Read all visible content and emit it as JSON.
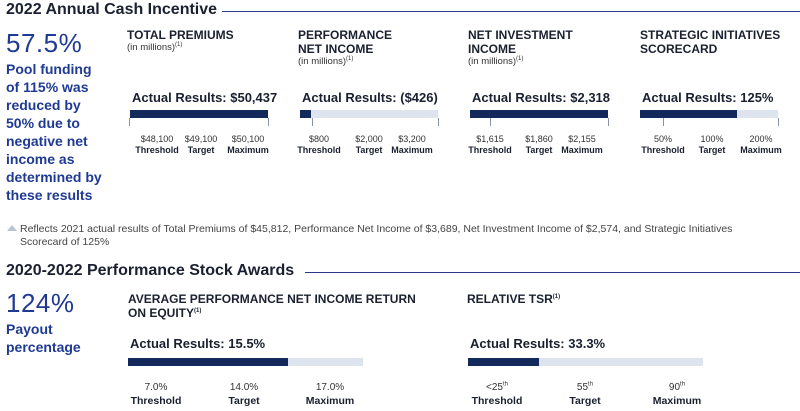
{
  "cash": {
    "title": "2022 Annual Cash Incentive",
    "pool_pct": "57.5%",
    "pool_text": [
      "Pool funding",
      "of 115% was",
      "reduced by",
      "50% due to",
      "negative net",
      "income as",
      "determined by",
      "these results"
    ],
    "columns": [
      {
        "title": [
          "TOTAL PREMIUMS"
        ],
        "subtitle": "(in millions)",
        "sup": "(1)",
        "actual": "Actual Results: $50,437",
        "fill": 1.0,
        "ticks": [
          {
            "value": "$48,100",
            "label": "Threshold"
          },
          {
            "value": "$49,100",
            "label": "Target"
          },
          {
            "value": "$50,100",
            "label": "Maximum"
          }
        ]
      },
      {
        "title": [
          "PERFORMANCE",
          "NET INCOME"
        ],
        "subtitle": "(in millions)",
        "sup": "(1)",
        "actual": "Actual Results: ($426)",
        "fill": 0.08,
        "ticks": [
          {
            "value": "$800",
            "label": "Threshold"
          },
          {
            "value": "$2,000",
            "label": "Target"
          },
          {
            "value": "$3,200",
            "label": "Maximum"
          }
        ]
      },
      {
        "title": [
          "NET INVESTMENT",
          "INCOME"
        ],
        "subtitle": "(in millions)",
        "sup": "(1)",
        "actual": "Actual Results: $2,318",
        "fill": 1.0,
        "ticks": [
          {
            "value": "$1,615",
            "label": "Threshold"
          },
          {
            "value": "$1,860",
            "label": "Target"
          },
          {
            "value": "$2,155",
            "label": "Maximum"
          }
        ]
      },
      {
        "title": [
          "STRATEGIC INITIATIVES",
          "SCORECARD"
        ],
        "subtitle": "",
        "sup": "",
        "actual": "Actual Results: 125%",
        "fill": 0.7,
        "ticks": [
          {
            "value": "50%",
            "label": "Threshold"
          },
          {
            "value": "100%",
            "label": "Target"
          },
          {
            "value": "200%",
            "label": "Maximum"
          }
        ]
      }
    ],
    "footnote": "Reflects 2021 actual results of Total Premiums of $45,812, Performance Net Income of $3,689,  Net Investment Income of $2,574, and Strategic Initiatives Scorecard of 125%"
  },
  "stock": {
    "title": "2020-2022 Performance Stock Awards",
    "payout_pct": "124%",
    "payout_text": [
      "Payout",
      "percentage"
    ],
    "columns": [
      {
        "title": [
          "AVERAGE PERFORMANCE NET INCOME RETURN",
          "ON EQUITY"
        ],
        "sup": "(1)",
        "actual": "Actual Results: 15.5%",
        "fill": 0.68,
        "ticks": [
          {
            "value": "7.0%",
            "sup": "",
            "label": "Threshold"
          },
          {
            "value": "14.0%",
            "sup": "",
            "label": "Target"
          },
          {
            "value": "17.0%",
            "sup": "",
            "label": "Maximum"
          }
        ]
      },
      {
        "title": [
          "RELATIVE TSR"
        ],
        "sup": "(1)",
        "actual": "Actual Results: 33.3%",
        "fill": 0.3,
        "ticks": [
          {
            "value": "<25",
            "sup": "th",
            "label": "Threshold"
          },
          {
            "value": "55",
            "sup": "th",
            "label": "Target"
          },
          {
            "value": "90",
            "sup": "th",
            "label": "Maximum"
          }
        ]
      }
    ]
  },
  "colors": {
    "accent": "#1f3a93",
    "bar_fill": "#13295b",
    "bar_track": "#dde4ee"
  }
}
